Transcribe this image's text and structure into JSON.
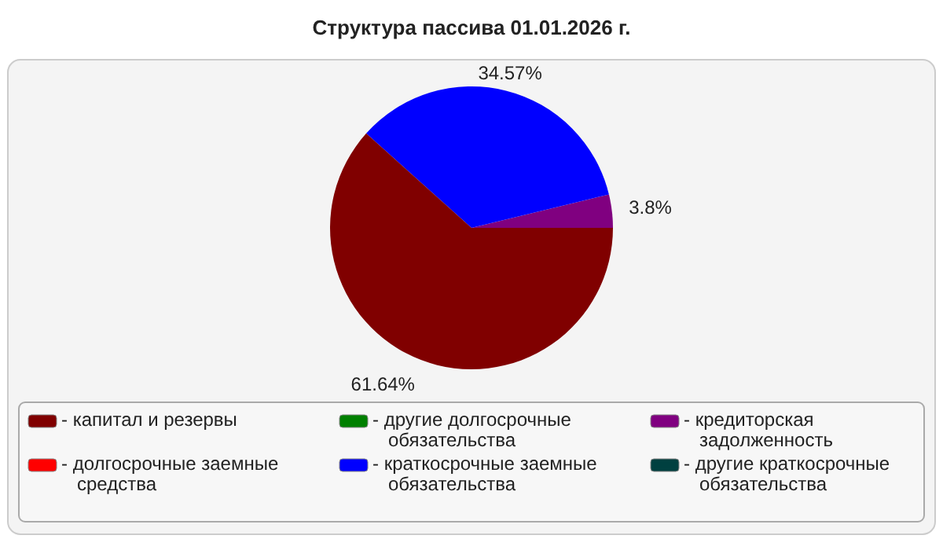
{
  "chart_data": {
    "type": "pie",
    "title": "Структура пассива 01.01.2026 г.",
    "categories": [
      "- капитал и резервы",
      "- долгосрочные заемные средства",
      "- другие долгосрочные обязательства",
      "- краткосрочные заемные обязательства",
      "- кредиторская задолженность",
      "- другие краткосрочные обязательства"
    ],
    "values": [
      61.64,
      0,
      0,
      34.57,
      3.8,
      0
    ],
    "colors": [
      "#800000",
      "#ff0000",
      "#008000",
      "#0000ff",
      "#800080",
      "#004040"
    ],
    "value_labels": [
      "61.64%",
      null,
      null,
      "34.57%",
      "3.8%",
      null
    ],
    "legend": "bottom"
  }
}
